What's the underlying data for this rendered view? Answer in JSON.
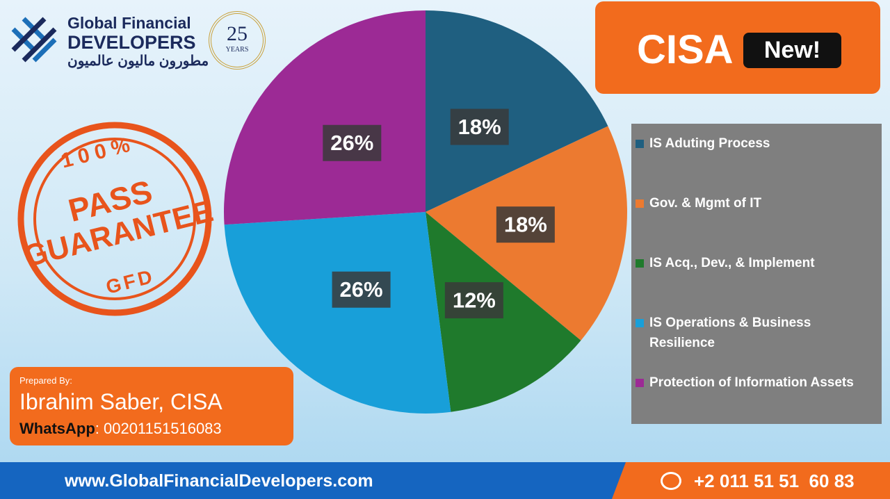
{
  "header": {
    "logo_line1": "Global Financial",
    "logo_line2": "DEVELOPERS",
    "logo_arabic": "مطورون ماليون عالميون",
    "anniversary_number": "25",
    "anniversary_label": "YEARS"
  },
  "badge": {
    "title": "CISA",
    "tag": "New!"
  },
  "stamp": {
    "top": "100%",
    "middle_line1": "PASS",
    "middle_line2": "GUARANTEE",
    "bottom": "GFD"
  },
  "author": {
    "caption": "Prepared By:",
    "name": "Ibrahim Saber, CISA",
    "contact_label": "WhatsApp",
    "contact_number": ": 00201151516083"
  },
  "footer": {
    "website": "www.GlobalFinancialDevelopers.com",
    "phone": "+2 011 51 51  60 83"
  },
  "chart_data": {
    "type": "pie",
    "categories": [
      "IS Aduting Process",
      "Gov. & Mgmt of IT",
      "IS Acq., Dev., & Implement",
      "IS Operations & Business Resilience",
      "Protection of Information Assets"
    ],
    "values": [
      18,
      18,
      12,
      26,
      26
    ],
    "value_labels": [
      "18%",
      "18%",
      "12%",
      "26%",
      "26%"
    ],
    "colors": [
      "#1f5f80",
      "#ec7a30",
      "#1f7a2c",
      "#189fd9",
      "#9c2a95"
    ],
    "legend": "right"
  }
}
